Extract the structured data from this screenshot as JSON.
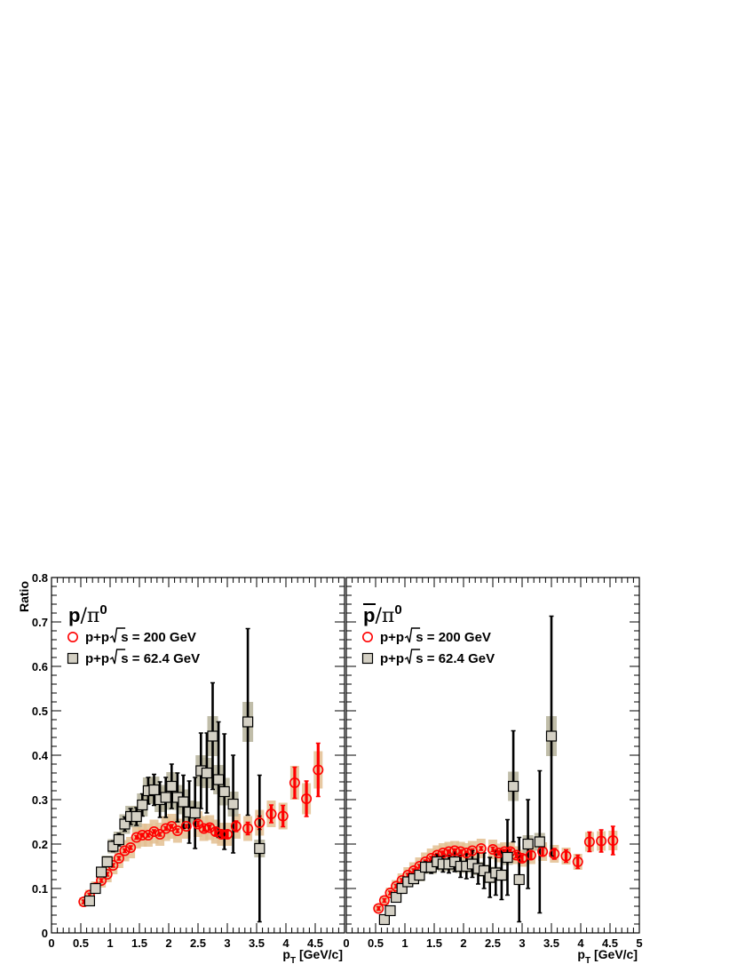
{
  "chart_data": [
    {
      "type": "scatter",
      "panel": "left",
      "title_main": "p",
      "title_rest": "/π",
      "title_sup": "0",
      "xlabel_main": "p",
      "xlabel_sub": "T",
      "xlabel_rest": " [GeV/c]",
      "ylabel": "Ratio",
      "xlim": [
        0,
        5
      ],
      "ylim": [
        0,
        0.8
      ],
      "x_ticks": [
        "0",
        "0.5",
        "1",
        "1.5",
        "2",
        "2.5",
        "3",
        "3.5",
        "4",
        "4.5"
      ],
      "y_ticks": [
        "0",
        "0.1",
        "0.2",
        "0.3",
        "0.4",
        "0.5",
        "0.6",
        "0.7",
        "0.8"
      ],
      "legend": [
        {
          "prefix": "p+p",
          "radical": "s",
          "suffix": " = 200 GeV"
        },
        {
          "prefix": "p+p",
          "radical": "s",
          "suffix": " = 62.4 GeV"
        }
      ],
      "series": [
        {
          "marker": "circle",
          "color": "#ff0000",
          "band_color": "#e3c092",
          "x": [
            0.55,
            0.65,
            0.75,
            0.85,
            0.95,
            1.05,
            1.15,
            1.25,
            1.35,
            1.45,
            1.55,
            1.65,
            1.75,
            1.85,
            1.95,
            2.05,
            2.15,
            2.3,
            2.5,
            2.6,
            2.7,
            2.8,
            2.9,
            3.0,
            3.15,
            3.35,
            3.55,
            3.75,
            3.95,
            4.15,
            4.35,
            4.55
          ],
          "y": [
            0.07,
            0.085,
            0.102,
            0.118,
            0.132,
            0.152,
            0.168,
            0.185,
            0.192,
            0.215,
            0.22,
            0.22,
            0.228,
            0.222,
            0.235,
            0.24,
            0.23,
            0.24,
            0.245,
            0.235,
            0.237,
            0.228,
            0.222,
            0.222,
            0.24,
            0.235,
            0.248,
            0.268,
            0.263,
            0.338,
            0.302,
            0.367
          ],
          "err": [
            0.004,
            0.004,
            0.004,
            0.004,
            0.004,
            0.004,
            0.004,
            0.004,
            0.004,
            0.004,
            0.004,
            0.004,
            0.004,
            0.004,
            0.004,
            0.004,
            0.004,
            0.004,
            0.006,
            0.006,
            0.006,
            0.008,
            0.008,
            0.008,
            0.012,
            0.014,
            0.015,
            0.02,
            0.024,
            0.035,
            0.04,
            0.06
          ],
          "sys": [
            0.01,
            0.012,
            0.014,
            0.016,
            0.018,
            0.02,
            0.022,
            0.024,
            0.024,
            0.025,
            0.026,
            0.026,
            0.027,
            0.026,
            0.028,
            0.028,
            0.027,
            0.028,
            0.029,
            0.028,
            0.028,
            0.027,
            0.026,
            0.026,
            0.028,
            0.028,
            0.029,
            0.03,
            0.03,
            0.038,
            0.035,
            0.042
          ]
        },
        {
          "marker": "square",
          "color": "#000000",
          "band_color": "#b5b29a",
          "x": [
            0.65,
            0.75,
            0.85,
            0.95,
            1.05,
            1.15,
            1.25,
            1.35,
            1.45,
            1.55,
            1.65,
            1.75,
            1.85,
            1.95,
            2.05,
            2.15,
            2.25,
            2.35,
            2.45,
            2.55,
            2.65,
            2.75,
            2.85,
            2.95,
            3.1,
            3.35,
            3.55
          ],
          "y": [
            0.072,
            0.1,
            0.137,
            0.16,
            0.195,
            0.21,
            0.245,
            0.262,
            0.262,
            0.288,
            0.32,
            0.322,
            0.3,
            0.305,
            0.33,
            0.305,
            0.295,
            0.272,
            0.27,
            0.365,
            0.36,
            0.443,
            0.345,
            0.318,
            0.29,
            0.475,
            0.19
          ],
          "err": [
            0.006,
            0.008,
            0.01,
            0.01,
            0.012,
            0.014,
            0.016,
            0.018,
            0.02,
            0.025,
            0.03,
            0.035,
            0.04,
            0.045,
            0.05,
            0.055,
            0.06,
            0.07,
            0.08,
            0.085,
            0.09,
            0.12,
            0.13,
            0.13,
            0.11,
            0.21,
            0.165
          ],
          "sys": [
            0.008,
            0.01,
            0.012,
            0.014,
            0.016,
            0.018,
            0.022,
            0.024,
            0.024,
            0.026,
            0.03,
            0.03,
            0.028,
            0.028,
            0.032,
            0.028,
            0.028,
            0.026,
            0.026,
            0.035,
            0.034,
            0.045,
            0.033,
            0.031,
            0.028,
            0.045,
            0.02
          ]
        }
      ]
    },
    {
      "type": "scatter",
      "panel": "right",
      "title_main": "p",
      "title_bar": true,
      "title_rest": "/π",
      "title_sup": "0",
      "xlabel_main": "p",
      "xlabel_sub": "T",
      "xlabel_rest": " [GeV/c]",
      "xlim": [
        0,
        5
      ],
      "ylim": [
        0,
        0.8
      ],
      "x_ticks": [
        "0",
        "0.5",
        "1",
        "1.5",
        "2",
        "2.5",
        "3",
        "3.5",
        "4",
        "4.5",
        "5"
      ],
      "legend": [
        {
          "prefix": "p+p",
          "radical": "s",
          "suffix": " = 200 GeV"
        },
        {
          "prefix": "p+p",
          "radical": "s",
          "suffix": " = 62.4 GeV"
        }
      ],
      "series": [
        {
          "marker": "circle",
          "color": "#ff0000",
          "band_color": "#e3c092",
          "x": [
            0.55,
            0.65,
            0.75,
            0.85,
            0.95,
            1.05,
            1.15,
            1.25,
            1.35,
            1.45,
            1.55,
            1.65,
            1.75,
            1.85,
            1.95,
            2.05,
            2.15,
            2.3,
            2.5,
            2.6,
            2.7,
            2.8,
            2.9,
            3.0,
            3.15,
            3.35,
            3.55,
            3.75,
            3.95,
            4.15,
            4.35,
            4.55
          ],
          "y": [
            0.055,
            0.073,
            0.09,
            0.105,
            0.118,
            0.13,
            0.14,
            0.15,
            0.16,
            0.168,
            0.175,
            0.18,
            0.183,
            0.185,
            0.183,
            0.18,
            0.185,
            0.19,
            0.188,
            0.18,
            0.183,
            0.183,
            0.175,
            0.168,
            0.175,
            0.183,
            0.178,
            0.173,
            0.16,
            0.205,
            0.207,
            0.208
          ],
          "err": [
            0.004,
            0.004,
            0.004,
            0.004,
            0.004,
            0.004,
            0.004,
            0.004,
            0.004,
            0.004,
            0.004,
            0.004,
            0.004,
            0.004,
            0.004,
            0.004,
            0.004,
            0.004,
            0.005,
            0.005,
            0.005,
            0.006,
            0.006,
            0.007,
            0.009,
            0.01,
            0.012,
            0.014,
            0.015,
            0.022,
            0.025,
            0.032
          ],
          "sys": [
            0.008,
            0.01,
            0.012,
            0.014,
            0.016,
            0.018,
            0.019,
            0.02,
            0.021,
            0.022,
            0.022,
            0.022,
            0.022,
            0.022,
            0.022,
            0.022,
            0.022,
            0.022,
            0.022,
            0.021,
            0.021,
            0.021,
            0.02,
            0.019,
            0.02,
            0.021,
            0.02,
            0.019,
            0.018,
            0.022,
            0.022,
            0.022
          ]
        },
        {
          "marker": "square",
          "color": "#000000",
          "band_color": "#b5b29a",
          "x": [
            0.65,
            0.75,
            0.85,
            0.95,
            1.05,
            1.15,
            1.25,
            1.35,
            1.45,
            1.55,
            1.65,
            1.75,
            1.85,
            1.95,
            2.05,
            2.15,
            2.25,
            2.35,
            2.45,
            2.55,
            2.65,
            2.75,
            2.85,
            2.95,
            3.1,
            3.3,
            3.5
          ],
          "y": [
            0.03,
            0.05,
            0.08,
            0.1,
            0.115,
            0.122,
            0.13,
            0.148,
            0.148,
            0.16,
            0.155,
            0.155,
            0.16,
            0.15,
            0.15,
            0.155,
            0.145,
            0.14,
            0.125,
            0.135,
            0.13,
            0.17,
            0.33,
            0.12,
            0.2,
            0.205,
            0.443
          ],
          "err": [
            0.004,
            0.005,
            0.006,
            0.007,
            0.008,
            0.009,
            0.01,
            0.012,
            0.014,
            0.016,
            0.018,
            0.02,
            0.022,
            0.025,
            0.028,
            0.03,
            0.035,
            0.04,
            0.045,
            0.05,
            0.055,
            0.085,
            0.125,
            0.095,
            0.1,
            0.16,
            0.27
          ],
          "sys": [
            0.005,
            0.006,
            0.008,
            0.01,
            0.012,
            0.013,
            0.014,
            0.015,
            0.015,
            0.016,
            0.016,
            0.016,
            0.016,
            0.015,
            0.015,
            0.016,
            0.015,
            0.014,
            0.013,
            0.014,
            0.013,
            0.017,
            0.033,
            0.012,
            0.02,
            0.02,
            0.045
          ]
        }
      ]
    }
  ]
}
